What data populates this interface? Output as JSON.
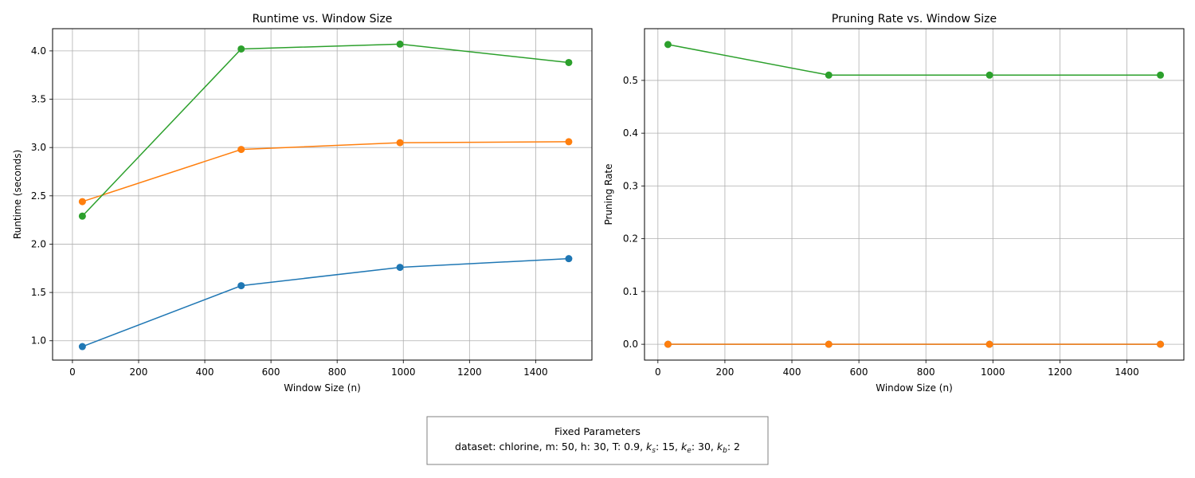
{
  "chart_data": [
    {
      "type": "line",
      "title": "Runtime vs. Window Size",
      "xlabel": "Window Size (n)",
      "ylabel": "Runtime (seconds)",
      "x": [
        30,
        510,
        990,
        1500
      ],
      "xlim": [
        -60,
        1570
      ],
      "ylim": [
        0.8,
        4.23
      ],
      "xticks": [
        0,
        200,
        400,
        600,
        800,
        1000,
        1200,
        1400
      ],
      "xtick_labels": [
        "0",
        "200",
        "400",
        "600",
        "800",
        "1000",
        "1200",
        "1400"
      ],
      "yticks": [
        1.0,
        1.5,
        2.0,
        2.5,
        3.0,
        3.5,
        4.0
      ],
      "ytick_labels": [
        "1.0",
        "1.5",
        "2.0",
        "2.5",
        "3.0",
        "3.5",
        "4.0"
      ],
      "grid": true,
      "series": [
        {
          "color": "#1f77b4",
          "values": [
            0.94,
            1.57,
            1.76,
            1.85
          ]
        },
        {
          "color": "#ff7f0e",
          "values": [
            2.44,
            2.98,
            3.05,
            3.06
          ]
        },
        {
          "color": "#2ca02c",
          "values": [
            2.29,
            4.02,
            4.07,
            3.88
          ]
        }
      ]
    },
    {
      "type": "line",
      "title": "Pruning Rate vs. Window Size",
      "xlabel": "Window Size (n)",
      "ylabel": "Pruning Rate",
      "x": [
        30,
        510,
        990,
        1500
      ],
      "xlim": [
        -40,
        1570
      ],
      "ylim": [
        -0.03,
        0.598
      ],
      "xticks": [
        0,
        200,
        400,
        600,
        800,
        1000,
        1200,
        1400
      ],
      "xtick_labels": [
        "0",
        "200",
        "400",
        "600",
        "800",
        "1000",
        "1200",
        "1400"
      ],
      "yticks": [
        0.0,
        0.1,
        0.2,
        0.3,
        0.4,
        0.5
      ],
      "ytick_labels": [
        "0.0",
        "0.1",
        "0.2",
        "0.3",
        "0.4",
        "0.5"
      ],
      "grid": true,
      "series": [
        {
          "color": "#1f77b4",
          "values": [
            0.0,
            0.0,
            0.0,
            0.0
          ]
        },
        {
          "color": "#ff7f0e",
          "values": [
            0.0,
            0.0,
            0.0,
            0.0
          ]
        },
        {
          "color": "#2ca02c",
          "values": [
            0.568,
            0.51,
            0.51,
            0.51
          ]
        }
      ]
    }
  ],
  "fixed_params": {
    "title": "Fixed Parameters",
    "line_prefix": "dataset: chlorine, m: 50, h: 30, T: 0.9, ",
    "ks_value": ": 15, ",
    "ke_value": ": 30, ",
    "kb_value": ": 2"
  }
}
